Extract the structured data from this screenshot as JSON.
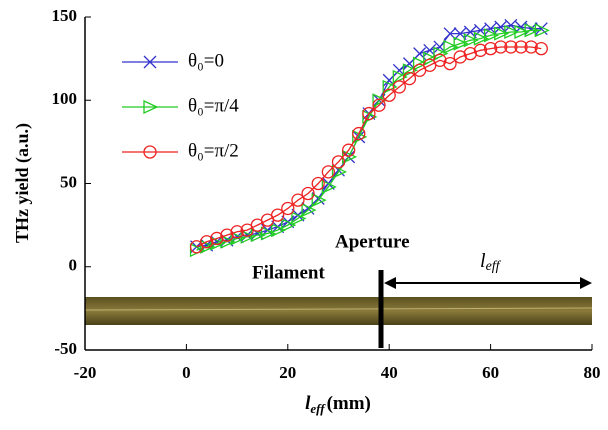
{
  "chart_data": {
    "type": "line",
    "y_label": "THz yield (a.u.)",
    "x_label": {
      "symbol": "l",
      "sub": "eff",
      "unit": "(mm)"
    },
    "annotations": {
      "aperture": "Aperture",
      "filament": "Filament",
      "length": {
        "symbol": "l",
        "sub": "eff"
      }
    },
    "xlim": [
      -20,
      80
    ],
    "xticks": [
      -20,
      0,
      20,
      40,
      60,
      80
    ],
    "ylim": [
      -50,
      150
    ],
    "yticks": [
      -50,
      0,
      50,
      100,
      150
    ],
    "x": [
      2,
      4,
      6,
      8,
      10,
      12,
      14,
      16,
      18,
      20,
      22,
      24,
      26,
      28,
      30,
      32,
      34,
      36,
      38,
      40,
      42,
      44,
      46,
      48,
      50,
      52,
      54,
      56,
      58,
      60,
      62,
      64,
      66,
      68,
      70
    ],
    "series": [
      {
        "name": "θ₀=0",
        "color": "#3333cc",
        "marker": "x",
        "values": [
          12,
          13,
          15,
          16,
          18,
          19,
          20,
          22,
          24,
          27,
          31,
          35,
          41,
          50,
          58,
          66,
          78,
          92,
          100,
          112,
          118,
          122,
          128,
          130,
          132,
          140,
          140,
          141,
          142,
          143,
          144,
          145,
          144,
          143,
          143
        ]
      },
      {
        "name": "θ₀=π/4",
        "color": "#22cc22",
        "marker": "triangle-right",
        "values": [
          10,
          12,
          14,
          15,
          17,
          18,
          19,
          20,
          22,
          25,
          29,
          34,
          40,
          48,
          57,
          66,
          78,
          90,
          100,
          108,
          114,
          118,
          122,
          125,
          128,
          132,
          134,
          136,
          137,
          139,
          140,
          141,
          141,
          142,
          142
        ]
      },
      {
        "name": "θ₀=π/2",
        "color": "#ee2222",
        "marker": "circle",
        "values": [
          12,
          15,
          17,
          19,
          21,
          22,
          25,
          28,
          31,
          35,
          40,
          44,
          50,
          57,
          63,
          70,
          80,
          92,
          97,
          103,
          108,
          113,
          118,
          121,
          124,
          122,
          126,
          128,
          130,
          131,
          132,
          132,
          132,
          132,
          131
        ]
      }
    ]
  }
}
